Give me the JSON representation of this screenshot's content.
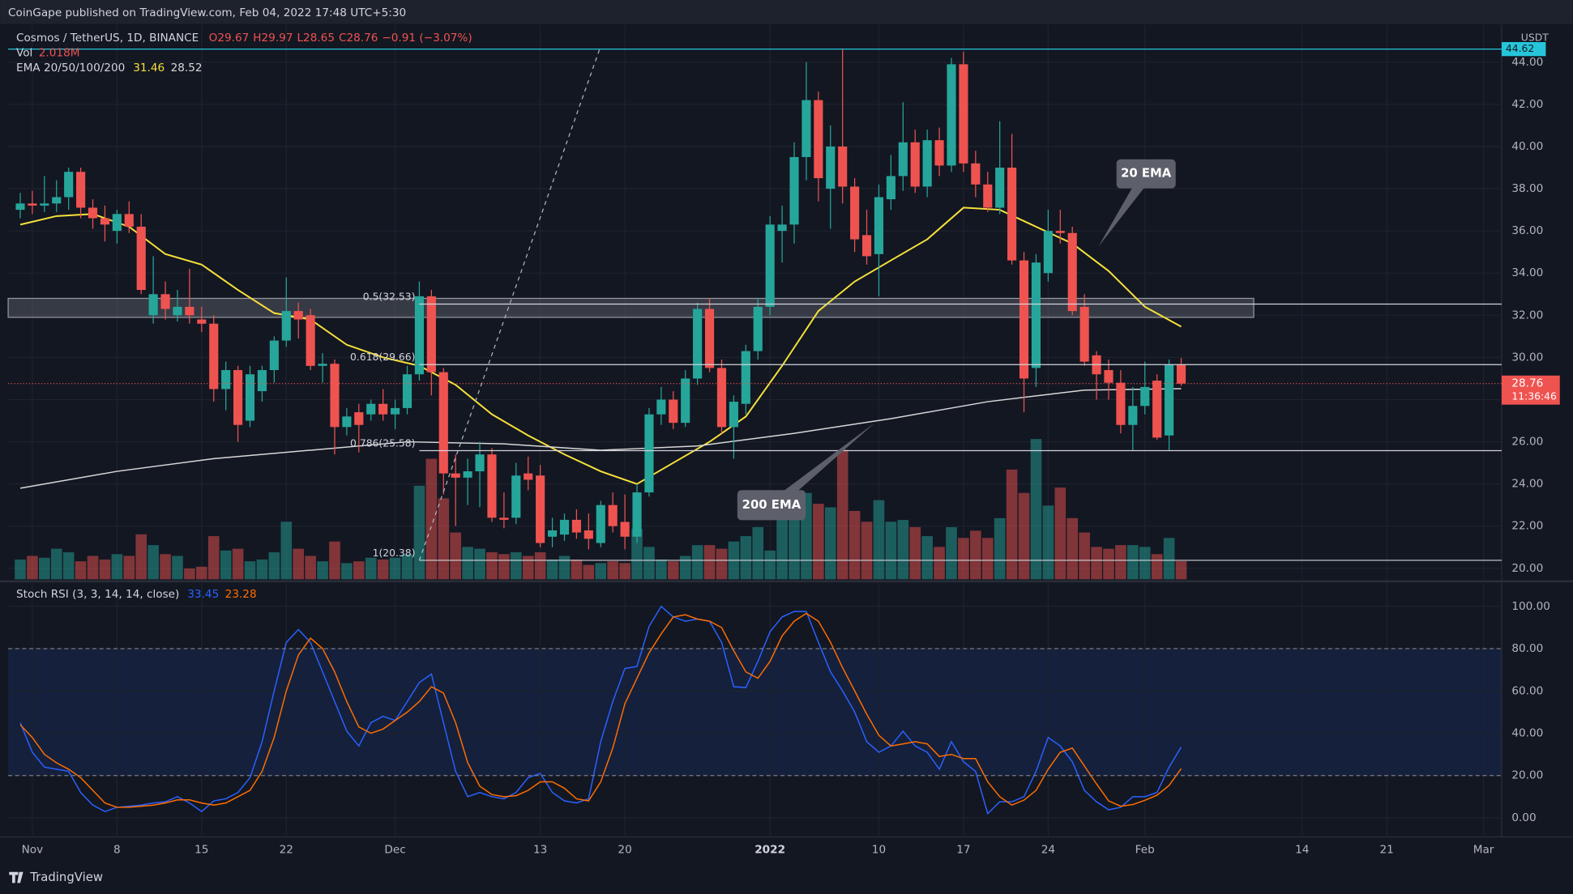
{
  "header": "CoinGape published on TradingView.com, Feb 04, 2022 17:48 UTC+5:30",
  "footer": "TradingView",
  "chart_data": [
    {
      "type": "candlestick",
      "title": "Cosmos / TetherUS, 1D, BINANCE",
      "ohlc_legend": [
        "O29.67",
        "H29.97",
        "L28.65",
        "C28.76",
        "−0.91 (−3.07%)"
      ],
      "currency": "USDT",
      "x": [
        -1,
        0,
        1,
        2,
        3,
        4,
        5,
        6,
        7,
        8,
        9,
        10,
        11,
        12,
        13,
        14,
        15,
        16,
        17,
        18,
        19,
        20,
        21,
        22,
        23,
        24,
        25,
        26,
        27,
        28,
        29,
        30,
        31,
        32,
        33,
        34,
        35,
        36,
        37,
        38,
        39,
        40,
        41,
        42,
        43,
        44,
        45,
        46,
        47,
        48,
        49,
        50,
        51,
        52,
        53,
        54,
        55,
        56,
        57,
        58,
        59,
        60,
        61,
        62,
        63,
        64,
        65,
        66,
        67,
        68,
        69,
        70,
        71,
        72,
        73,
        74,
        75,
        76,
        77,
        78,
        79,
        80,
        81,
        82,
        83,
        84,
        85,
        86,
        87,
        88,
        89,
        90,
        91,
        92,
        93,
        94,
        95
      ],
      "open": [
        37.0,
        37.3,
        37.2,
        37.3,
        37.6,
        38.8,
        37.1,
        36.6,
        36.0,
        36.8,
        36.2,
        32.0,
        33.0,
        32.0,
        32.4,
        31.8,
        31.6,
        28.5,
        29.4,
        27.0,
        28.4,
        29.4,
        30.8,
        32.2,
        32.0,
        29.6,
        29.7,
        26.7,
        27.4,
        27.3,
        27.8,
        27.3,
        27.6,
        29.2,
        32.9,
        29.3,
        24.5,
        24.3,
        24.6,
        25.4,
        22.4,
        22.4,
        24.5,
        24.4,
        21.5,
        21.6,
        22.3,
        21.8,
        21.2,
        23.0,
        22.2,
        21.5,
        23.6,
        27.3,
        28.0,
        26.9,
        29.0,
        32.3,
        29.5,
        26.7,
        27.8,
        30.3,
        32.4,
        36.0,
        36.3,
        39.5,
        42.2,
        38.0,
        40.0,
        38.1,
        35.8,
        34.9,
        37.5,
        38.6,
        40.2,
        38.1,
        40.3,
        39.1,
        43.9,
        39.2,
        38.2,
        37.1,
        39.0,
        34.6,
        29.5,
        34.0,
        36.0,
        35.9,
        32.4,
        30.1,
        29.4,
        28.8,
        26.8,
        27.7,
        28.9,
        26.3,
        29.67
      ],
      "high": [
        37.8,
        37.9,
        38.6,
        38.4,
        39.0,
        39.0,
        37.5,
        37.2,
        37.0,
        37.4,
        36.8,
        34.8,
        33.6,
        33.2,
        34.2,
        32.4,
        32.0,
        29.8,
        29.6,
        29.6,
        29.6,
        31.0,
        33.8,
        32.6,
        32.3,
        30.2,
        29.9,
        27.6,
        27.8,
        28.0,
        28.5,
        28.0,
        29.6,
        33.6,
        33.2,
        29.5,
        25.4,
        25.2,
        26.0,
        25.7,
        23.6,
        25.0,
        25.3,
        24.9,
        22.4,
        22.6,
        22.8,
        22.6,
        23.2,
        23.6,
        23.5,
        24.0,
        27.6,
        28.6,
        28.4,
        29.4,
        32.6,
        32.8,
        29.9,
        28.2,
        30.6,
        32.8,
        36.7,
        37.2,
        40.2,
        44.0,
        42.6,
        41.0,
        44.62,
        38.5,
        37.0,
        38.2,
        39.6,
        42.1,
        40.8,
        40.8,
        40.9,
        44.2,
        44.5,
        39.8,
        38.8,
        41.2,
        40.6,
        35.0,
        34.9,
        37.0,
        37.0,
        36.2,
        33.0,
        30.3,
        29.9,
        29.4,
        28.6,
        29.8,
        29.2,
        29.9,
        29.97
      ],
      "low": [
        36.6,
        36.8,
        36.9,
        36.9,
        37.0,
        36.6,
        36.1,
        35.5,
        35.4,
        35.9,
        33.0,
        31.6,
        31.8,
        31.7,
        31.6,
        31.2,
        27.9,
        27.5,
        26.0,
        26.7,
        27.9,
        28.8,
        30.5,
        30.9,
        29.4,
        28.8,
        25.4,
        26.3,
        25.5,
        27.0,
        27.0,
        26.6,
        27.3,
        28.9,
        28.2,
        23.5,
        22.0,
        23.0,
        22.9,
        22.2,
        21.9,
        22.1,
        23.7,
        21.0,
        21.0,
        21.3,
        21.4,
        20.9,
        21.0,
        21.7,
        20.9,
        21.2,
        23.4,
        26.8,
        26.6,
        26.7,
        28.7,
        29.3,
        26.4,
        25.2,
        27.3,
        29.9,
        32.0,
        34.5,
        35.4,
        38.4,
        37.4,
        36.1,
        37.3,
        35.0,
        34.4,
        32.9,
        37.0,
        37.9,
        37.8,
        37.6,
        38.6,
        38.8,
        38.8,
        37.6,
        36.9,
        36.8,
        34.4,
        27.4,
        28.6,
        33.6,
        35.4,
        32.0,
        29.6,
        28.0,
        28.0,
        26.4,
        25.6,
        27.3,
        26.1,
        25.6,
        28.65
      ],
      "close": [
        37.3,
        37.2,
        37.3,
        37.6,
        38.8,
        37.1,
        36.6,
        36.3,
        36.8,
        36.2,
        33.2,
        33.0,
        32.3,
        32.4,
        32.0,
        31.6,
        28.5,
        29.4,
        26.8,
        29.2,
        29.4,
        30.8,
        32.2,
        31.8,
        29.6,
        29.7,
        26.7,
        27.2,
        26.8,
        27.8,
        27.3,
        27.6,
        29.2,
        32.9,
        29.3,
        24.5,
        24.3,
        24.6,
        25.4,
        22.4,
        22.3,
        24.4,
        24.2,
        21.2,
        21.8,
        22.3,
        21.7,
        21.4,
        23.0,
        22.0,
        21.5,
        23.6,
        27.3,
        28.0,
        26.9,
        29.0,
        32.3,
        29.5,
        26.7,
        27.9,
        30.3,
        32.4,
        36.3,
        36.3,
        39.5,
        42.2,
        38.5,
        40.0,
        38.1,
        35.6,
        34.8,
        37.6,
        38.6,
        40.2,
        38.1,
        40.3,
        39.1,
        43.9,
        39.2,
        38.2,
        37.1,
        39.0,
        34.6,
        29.0,
        34.5,
        36.0,
        35.9,
        32.2,
        29.8,
        29.2,
        28.8,
        26.8,
        27.7,
        28.6,
        26.2,
        29.67,
        28.76
      ],
      "last_price_countdown": "11:36:46",
      "up_color": "#26a69a",
      "down_color": "#ef5350",
      "volume": {
        "name": "Vol",
        "last_label": "2.018M",
        "values": [
          2.2,
          2.6,
          2.4,
          3.4,
          3.0,
          2.0,
          2.6,
          2.2,
          2.8,
          2.6,
          5.0,
          3.8,
          2.8,
          2.6,
          1.2,
          1.4,
          4.8,
          3.2,
          3.4,
          2.0,
          2.2,
          3.0,
          6.4,
          3.4,
          2.6,
          2.0,
          4.2,
          1.8,
          2.0,
          2.4,
          2.2,
          2.4,
          2.8,
          10.4,
          13.4,
          9.0,
          5.2,
          3.6,
          3.4,
          3.0,
          2.8,
          3.0,
          2.6,
          3.0,
          2.2,
          2.6,
          2.2,
          1.6,
          1.8,
          2.0,
          1.8,
          5.6,
          3.6,
          2.2,
          2.0,
          2.6,
          3.8,
          3.8,
          3.4,
          4.2,
          4.8,
          5.8,
          3.2,
          6.8,
          7.4,
          9.6,
          8.4,
          8.0,
          14.4,
          7.6,
          6.4,
          8.8,
          6.4,
          6.6,
          5.8,
          4.8,
          3.6,
          5.8,
          4.6,
          5.4,
          4.6,
          6.8,
          12.2,
          9.6,
          15.6,
          8.2,
          10.2,
          6.8,
          5.2,
          3.6,
          3.4,
          3.8,
          3.8,
          3.6,
          2.8,
          4.6,
          2.018
        ]
      },
      "ema_legend": "EMA 20/50/100/200",
      "series": [
        {
          "name": "20 EMA",
          "color": "#f7e13b",
          "x": [
            -1,
            2,
            5,
            8,
            11,
            14,
            17,
            20,
            23,
            26,
            29,
            32,
            35,
            38,
            41,
            44,
            47,
            50,
            53,
            56,
            59,
            62,
            65,
            68,
            71,
            74,
            77,
            80,
            83,
            86,
            89,
            92,
            95
          ],
          "values": [
            36.3,
            36.7,
            36.8,
            36.2,
            34.9,
            34.4,
            33.2,
            32.1,
            31.8,
            30.6,
            30.0,
            29.6,
            28.7,
            27.3,
            26.3,
            25.4,
            24.6,
            24.0,
            25.0,
            26.0,
            27.2,
            29.6,
            32.2,
            33.6,
            34.6,
            35.6,
            37.1,
            37.0,
            36.2,
            35.4,
            34.1,
            32.4,
            31.46
          ]
        },
        {
          "name": "200 EMA",
          "color": "#d8d8d8",
          "x": [
            -1,
            7,
            15,
            23,
            31,
            39,
            47,
            55,
            63,
            71,
            79,
            87,
            95
          ],
          "values": [
            23.8,
            24.6,
            25.2,
            25.6,
            26.0,
            25.9,
            25.6,
            25.8,
            26.4,
            27.1,
            27.9,
            28.45,
            28.52
          ]
        }
      ],
      "fib_start": 32,
      "fib_levels": [
        {
          "value": 32.53,
          "label": "0.5(32.53)"
        },
        {
          "value": 29.66,
          "label": "0.618(29.66)"
        },
        {
          "value": 25.58,
          "label": "0.786(25.58)"
        },
        {
          "value": 20.38,
          "label": "1(20.38)"
        }
      ],
      "zone": {
        "xlim": [
          -2,
          101
        ],
        "ylim": [
          31.9,
          32.8
        ]
      },
      "trend_line": {
        "x": [
          32,
          46.9
        ],
        "y": [
          20.38,
          44.6
        ]
      },
      "high_line": 44.62,
      "high_line_color": "#26c6da",
      "xlim": [
        -2,
        121.5
      ],
      "xticks": [
        {
          "value": 0,
          "label": "Nov"
        },
        {
          "value": 7,
          "label": "8"
        },
        {
          "value": 14,
          "label": "15"
        },
        {
          "value": 21,
          "label": "22"
        },
        {
          "value": 30,
          "label": "Dec"
        },
        {
          "value": 42,
          "label": "13"
        },
        {
          "value": 49,
          "label": "20"
        },
        {
          "value": 61,
          "label": "2022"
        },
        {
          "value": 70,
          "label": "10"
        },
        {
          "value": 77,
          "label": "17"
        },
        {
          "value": 84,
          "label": "24"
        },
        {
          "value": 92,
          "label": "Feb"
        },
        {
          "value": 105,
          "label": "14"
        },
        {
          "value": 112,
          "label": "21"
        },
        {
          "value": 120,
          "label": "Mar"
        }
      ],
      "ylim": [
        19.48,
        45.76
      ],
      "yticks": [
        {
          "value": 20,
          "label": "20.00"
        },
        {
          "value": 22,
          "label": "22.00"
        },
        {
          "value": 24,
          "label": "24.00"
        },
        {
          "value": 26,
          "label": "26.00"
        },
        {
          "value": 28,
          "label": "28.00"
        },
        {
          "value": 30,
          "label": "30.00"
        },
        {
          "value": 32,
          "label": "32.00"
        },
        {
          "value": 34,
          "label": "34.00"
        },
        {
          "value": 36,
          "label": "36.00"
        },
        {
          "value": 38,
          "label": "38.00"
        },
        {
          "value": 40,
          "label": "40.00"
        },
        {
          "value": 42,
          "label": "42.00"
        },
        {
          "value": 44,
          "label": "44.00"
        }
      ],
      "grid": true
    },
    {
      "type": "line",
      "title": "Stoch RSI (3, 3, 14, 14, close)",
      "x": [
        -1,
        0,
        1,
        2,
        3,
        4,
        5,
        6,
        7,
        8,
        9,
        10,
        11,
        12,
        13,
        14,
        15,
        16,
        17,
        18,
        19,
        20,
        21,
        22,
        23,
        24,
        25,
        26,
        27,
        28,
        29,
        30,
        31,
        32,
        33,
        34,
        35,
        36,
        37,
        38,
        39,
        40,
        41,
        42,
        43,
        44,
        45,
        46,
        47,
        48,
        49,
        50,
        51,
        52,
        53,
        54,
        55,
        56,
        57,
        58,
        59,
        60,
        61,
        62,
        63,
        64,
        65,
        66,
        67,
        68,
        69,
        70,
        71,
        72,
        73,
        74,
        75,
        76,
        77,
        78,
        79,
        80,
        81,
        82,
        83,
        84,
        85,
        86,
        87,
        88,
        89,
        90,
        91,
        92,
        93,
        94,
        95
      ],
      "series": [
        {
          "color": "#2962ff",
          "values": [
            45,
            31,
            24,
            23,
            22,
            12,
            6,
            3,
            5,
            5.5,
            6,
            7,
            7.6,
            10,
            7,
            3,
            8,
            9,
            12,
            19,
            36,
            60,
            83,
            89,
            83,
            69,
            55,
            41,
            34,
            45,
            48,
            46,
            55,
            64,
            68,
            45,
            22,
            10,
            12,
            10,
            9,
            12,
            19,
            21,
            12,
            8,
            7,
            9,
            36,
            55,
            70.6,
            71.6,
            90.5,
            100,
            95,
            93,
            94,
            93,
            83,
            62,
            61.6,
            74,
            88,
            95,
            97.6,
            97.6,
            83,
            69,
            60,
            50,
            36,
            31,
            34,
            41,
            34,
            31,
            23,
            36,
            26.5,
            22,
            2,
            7.6,
            7.6,
            10,
            22,
            38,
            34,
            26.5,
            13,
            7.6,
            3.8,
            5,
            10,
            10,
            12,
            24,
            33.45
          ]
        },
        {
          "color": "#ff6d00",
          "values": [
            44,
            38,
            30,
            26,
            23,
            19,
            13,
            7,
            5,
            5,
            5.5,
            6,
            7,
            8.5,
            8.5,
            7,
            6,
            7,
            10,
            13,
            22,
            38,
            60,
            77,
            85,
            80,
            69,
            55,
            43,
            40,
            42,
            46,
            50,
            55,
            62,
            59,
            45,
            26,
            15,
            11,
            10,
            10.5,
            13,
            17,
            17,
            14,
            9,
            8,
            17,
            33,
            54,
            66,
            78,
            87,
            95,
            96,
            94,
            93,
            90,
            79,
            69,
            66,
            74,
            86,
            93,
            96.7,
            93,
            83,
            71,
            60,
            49,
            39,
            34,
            35,
            36,
            35,
            29,
            30,
            28,
            28,
            17,
            10,
            6,
            8.4,
            13,
            23,
            31,
            33,
            24.5,
            16,
            8,
            5.5,
            6.3,
            8.3,
            10.7,
            15.3,
            23.28
          ]
        }
      ],
      "bands": [
        20,
        80
      ],
      "ylim": [
        -9,
        110.9
      ],
      "yticks": [
        {
          "value": 0,
          "label": "0.00"
        },
        {
          "value": 20,
          "label": "20.00"
        },
        {
          "value": 40,
          "label": "40.00"
        },
        {
          "value": 60,
          "label": "60.00"
        },
        {
          "value": 80,
          "label": "80.00"
        },
        {
          "value": 100,
          "label": "100.00"
        }
      ]
    }
  ]
}
